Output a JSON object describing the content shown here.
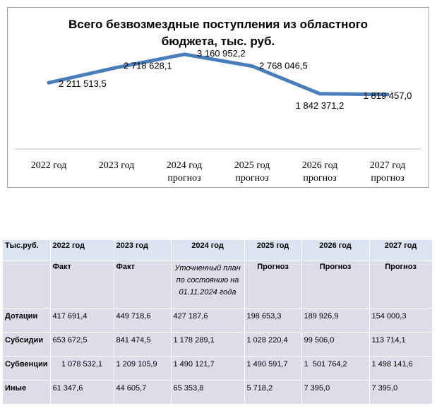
{
  "chart_data": {
    "type": "line",
    "title_lines": [
      "Всего безвозмездные поступления из областного",
      "бюджета, тыс. руб."
    ],
    "categories": [
      [
        "2022 год"
      ],
      [
        "2023 год"
      ],
      [
        "2024 год",
        "прогноз"
      ],
      [
        "2025 год",
        "прогноз"
      ],
      [
        "2026 год",
        "прогноз"
      ],
      [
        "2027 год",
        "прогноз"
      ]
    ],
    "values": [
      2211513.5,
      2718628.1,
      3160952.2,
      2768046.5,
      1842371.2,
      1819457.0
    ],
    "data_labels": [
      "2 211 513,5",
      "2 718 628,1",
      "3 160 952,2",
      "2 768 046,5",
      "1 842 371,2",
      "1 819 457,0"
    ],
    "ylim": [
      0,
      3300000
    ],
    "grid": false,
    "line_color": "#4a7ebb"
  },
  "table": {
    "corner": "Тыс.руб.",
    "years": [
      "2022 год",
      "2023 год",
      "2024 год",
      "2025 год",
      "2026 год",
      "2027 год"
    ],
    "subheaders": [
      "Факт",
      "Факт",
      "Уточненный план по состоянию на 01.11.2024 года",
      "Прогноз",
      "Прогноз",
      "Прогноз"
    ],
    "rows": [
      {
        "label": "Дотации",
        "cells": [
          "417 691,4",
          "449 718,6",
          "427 187,6",
          "198 653,3",
          "189 926,9",
          "154 000,3"
        ]
      },
      {
        "label": "Субсидии",
        "cells": [
          "653 672,5",
          "841 474,5",
          "1 178 289,1",
          "1 028 220,4",
          "99 506,0",
          "113 714,1"
        ]
      },
      {
        "label": "Субвенции",
        "cells": [
          "1 078 532,1",
          "1 209 105,9",
          "1 490 121,7",
          "1 490 591,7",
          "1  501 764,2",
          "1 498 141,6"
        ]
      },
      {
        "label": "Иные",
        "cells": [
          "61 347,6",
          "44 605,7",
          "65 353,8",
          "5 718,2",
          "7 395,0",
          "7 395,0"
        ]
      }
    ]
  }
}
